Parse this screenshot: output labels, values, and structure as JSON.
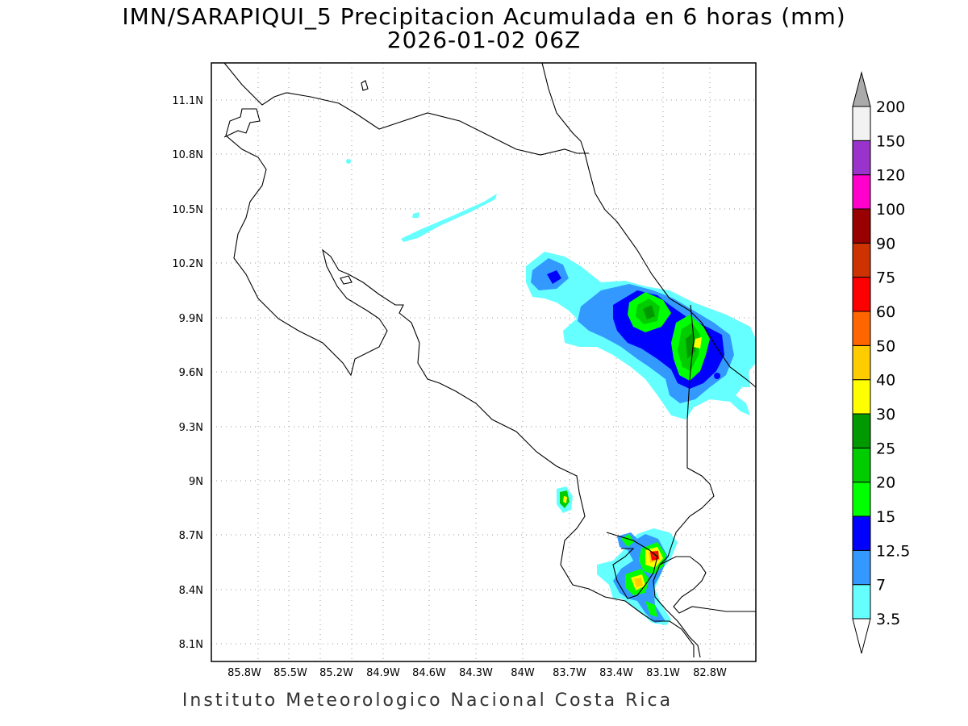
{
  "title_line1": "IMN/SARAPIQUI_5 Precipitacion Acumulada en 6 horas (mm)",
  "title_line2": "2026-01-02 06Z",
  "footer": "Instituto Meteorologico Nacional Costa Rica",
  "map": {
    "lon_range": [
      -85.95,
      -82.6
    ],
    "lat_range": [
      8.0,
      11.3
    ],
    "lon_ticks": [
      "85.8W",
      "85.5W",
      "85.2W",
      "84.9W",
      "84.6W",
      "84.3W",
      "84W",
      "83.7W",
      "83.4W",
      "83.1W",
      "82.8W"
    ],
    "lat_ticks": [
      "11.1N",
      "10.8N",
      "10.5N",
      "10.2N",
      "9.9N",
      "9.6N",
      "9.3N",
      "9N",
      "8.7N",
      "8.4N",
      "8.1N"
    ],
    "grid": true
  },
  "colorbar": {
    "levels": [
      "3.5",
      "7",
      "12.5",
      "15",
      "20",
      "25",
      "30",
      "40",
      "50",
      "60",
      "75",
      "90",
      "100",
      "120",
      "150",
      "200"
    ],
    "colors": [
      "#66ffff",
      "#3399ff",
      "#0000ff",
      "#00ff00",
      "#00cc00",
      "#009900",
      "#ffff00",
      "#ffcc00",
      "#ff6600",
      "#ff0000",
      "#cc3300",
      "#990000",
      "#ff00cc",
      "#9933cc",
      "#f2f2f2",
      "#aaaaaa"
    ]
  }
}
